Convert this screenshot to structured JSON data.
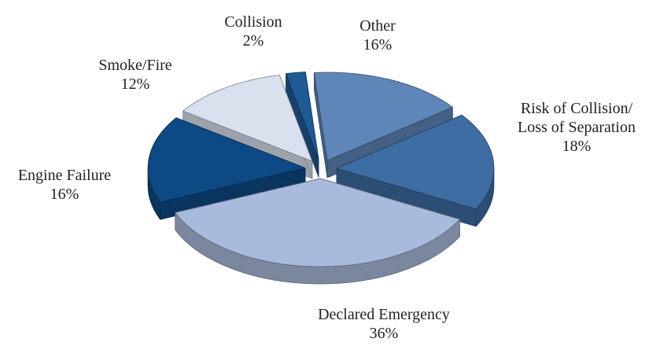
{
  "chart_data": {
    "type": "pie",
    "categories": [
      "Collision",
      "Other",
      "Risk of Collision/ Loss of Separation",
      "Declared Emergency",
      "Engine Failure",
      "Smoke/Fire"
    ],
    "values": [
      2,
      16,
      18,
      36,
      16,
      12
    ],
    "value_labels": [
      "2%",
      "16%",
      "18%",
      "36%",
      "16%",
      "12%"
    ],
    "colors": [
      "#1f5a94",
      "#5f86b8",
      "#3d6da3",
      "#a9bbdc",
      "#0d4a85",
      "#d9e1ef"
    ]
  }
}
